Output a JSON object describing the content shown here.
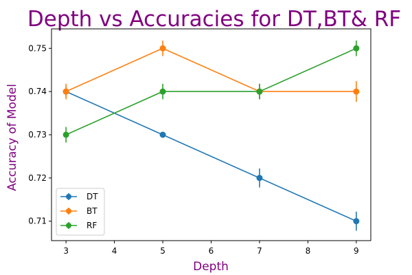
{
  "chart_data": {
    "type": "line",
    "title": "Depth vs Accuracies for DT,BT& RF",
    "xlabel": "Depth",
    "ylabel": "Accuracy of Model",
    "x": [
      3,
      5,
      7,
      9
    ],
    "xticks": [
      "3",
      "4",
      "5",
      "6",
      "7",
      "8",
      "9"
    ],
    "yticks": [
      "0.71",
      "0.72",
      "0.73",
      "0.74",
      "0.75"
    ],
    "xlim": [
      2.7,
      9.3
    ],
    "ylim": [
      0.7055,
      0.7545
    ],
    "grid": false,
    "legend_position": "lower-left",
    "series": [
      {
        "name": "DT",
        "color": "#1f77b4",
        "values": [
          0.74,
          0.73,
          0.72,
          0.71
        ],
        "errors": [
          0.0012,
          0.0004,
          0.0022,
          0.0022
        ]
      },
      {
        "name": "BT",
        "color": "#ff7f0e",
        "values": [
          0.74,
          0.75,
          0.74,
          0.74
        ],
        "errors": [
          0.0018,
          0.0018,
          0.0018,
          0.0024
        ]
      },
      {
        "name": "RF",
        "color": "#2ca02c",
        "values": [
          0.73,
          0.74,
          0.74,
          0.75
        ],
        "errors": [
          0.0018,
          0.0018,
          0.0018,
          0.0018
        ]
      }
    ]
  }
}
